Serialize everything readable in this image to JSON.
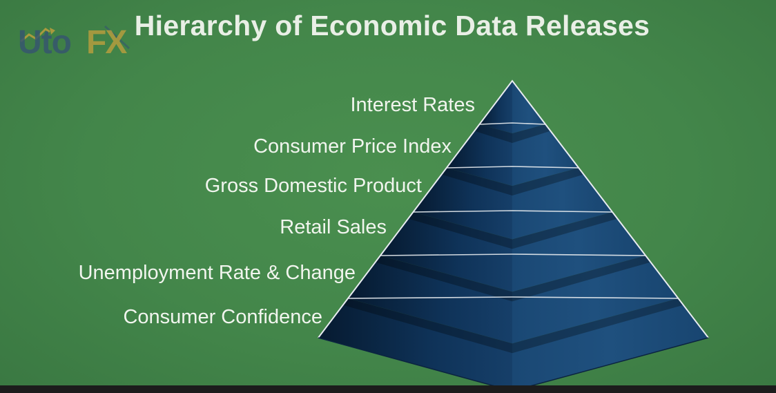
{
  "slide": {
    "title": "Hierarchy of Economic Data Releases",
    "background_color": "#43864a",
    "title_color": "#e9efe6"
  },
  "logo": {
    "text_main": "Uto",
    "text_accent": "FX",
    "main_color": "#36566e",
    "accent_color": "#c4a03c",
    "icon": "chart-arrow-icon"
  },
  "pyramid": {
    "fill_color": "#16406a",
    "edge_color": "#e8ecf0",
    "levels": [
      {
        "label": "Interest Rates"
      },
      {
        "label": "Consumer Price Index"
      },
      {
        "label": "Gross Domestic Product"
      },
      {
        "label": "Retail Sales"
      },
      {
        "label": "Unemployment Rate & Change"
      },
      {
        "label": "Consumer Confidence"
      }
    ]
  }
}
